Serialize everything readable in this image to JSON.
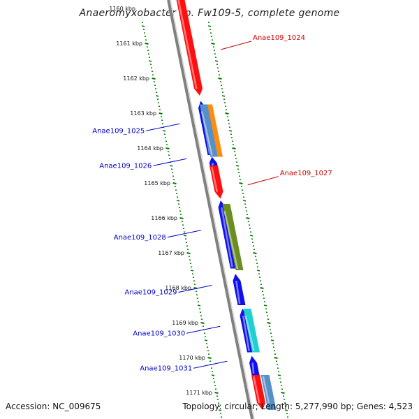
{
  "title": "Anaeromyxobacter sp. Fw109-5, complete genome",
  "footer": {
    "accession": "Accession: NC_009675",
    "topology": "Topology: circular; Length: 5,277,990 bp; Genes: 4,523"
  },
  "colors": {
    "backbone": "#808080",
    "tick": "#007a00",
    "forward_label": "#cc0000",
    "reverse_label": "#0000cc",
    "red": "#ff1010",
    "blue": "#1010ee",
    "orange": "#ff8c10",
    "steelblue": "#5590c8",
    "olive": "#6b8e23",
    "cyan": "#20d0d0"
  },
  "scale": {
    "start_kbp": 1160,
    "end_kbp": 1172,
    "tick_labels": [
      "1160 kbp",
      "1161 kbp",
      "1162 kbp",
      "1163 kbp",
      "1164 kbp",
      "1165 kbp",
      "1166 kbp",
      "1167 kbp",
      "1168 kbp",
      "1169 kbp",
      "1170 kbp",
      "1171 kbp"
    ]
  },
  "genes": [
    {
      "name": "Anae109_1024",
      "strand": "forward",
      "color": "red",
      "start_kbp": 1159.7,
      "end_kbp": 1162.5,
      "labeled": true
    },
    {
      "name": "Anae109_1025",
      "strand": "reverse",
      "color": "blue",
      "start_kbp": 1162.65,
      "end_kbp": 1164.2,
      "labeled": true
    },
    {
      "name": "",
      "strand": "reverse",
      "color": "orange",
      "start_kbp": 1162.75,
      "end_kbp": 1164.25,
      "labeled": false,
      "lane": 2
    },
    {
      "name": "",
      "strand": "reverse",
      "color": "steelblue",
      "start_kbp": 1162.75,
      "end_kbp": 1164.25,
      "labeled": false,
      "lane": 1.3
    },
    {
      "name": "Anae109_1026",
      "strand": "reverse",
      "color": "blue",
      "start_kbp": 1164.25,
      "end_kbp": 1164.6,
      "labeled": true
    },
    {
      "name": "Anae109_1027",
      "strand": "forward",
      "color": "red",
      "start_kbp": 1164.5,
      "end_kbp": 1165.45,
      "labeled": true
    },
    {
      "name": "Anae109_1028",
      "strand": "reverse",
      "color": "blue",
      "start_kbp": 1165.5,
      "end_kbp": 1167.45,
      "labeled": true
    },
    {
      "name": "",
      "strand": "reverse",
      "color": "olive",
      "start_kbp": 1165.6,
      "end_kbp": 1167.5,
      "labeled": false,
      "lane": 1.7
    },
    {
      "name": "Anae109_1029",
      "strand": "reverse",
      "color": "blue",
      "start_kbp": 1167.6,
      "end_kbp": 1168.5,
      "labeled": true
    },
    {
      "name": "Anae109_1030",
      "strand": "reverse",
      "color": "blue",
      "start_kbp": 1168.6,
      "end_kbp": 1169.85,
      "labeled": true
    },
    {
      "name": "",
      "strand": "reverse",
      "color": "cyan",
      "start_kbp": 1168.6,
      "end_kbp": 1169.85,
      "labeled": false,
      "lane": 1.7
    },
    {
      "name": "Anae109_1031",
      "strand": "reverse",
      "color": "blue",
      "start_kbp": 1169.95,
      "end_kbp": 1170.5,
      "labeled": true
    },
    {
      "name": "",
      "strand": "forward",
      "color": "red",
      "start_kbp": 1170.5,
      "end_kbp": 1171.5,
      "labeled": false
    },
    {
      "name": "",
      "strand": "forward",
      "color": "steelblue",
      "start_kbp": 1170.5,
      "end_kbp": 1171.5,
      "labeled": false,
      "lane": 1.8
    }
  ]
}
